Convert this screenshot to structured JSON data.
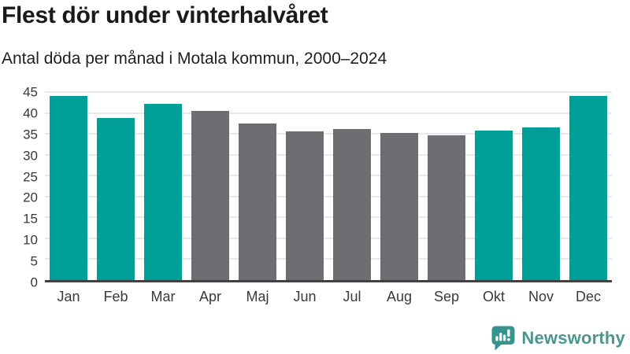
{
  "header": {
    "title": "Flest dör under vinterhalvåret",
    "subtitle": "Antal döda per månad i Motala kommun, 2000–2024"
  },
  "chart_data": {
    "type": "bar",
    "title": "Flest dör under vinterhalvåret",
    "subtitle": "Antal döda per månad i Motala kommun, 2000–2024",
    "categories": [
      "Jan",
      "Feb",
      "Mar",
      "Apr",
      "Maj",
      "Jun",
      "Jul",
      "Aug",
      "Sep",
      "Okt",
      "Nov",
      "Dec"
    ],
    "values": [
      44.0,
      38.8,
      42.1,
      40.4,
      37.4,
      35.5,
      36.2,
      35.3,
      34.6,
      35.7,
      36.5,
      44.0
    ],
    "highlighted": [
      true,
      true,
      true,
      false,
      false,
      false,
      false,
      false,
      false,
      true,
      true,
      true
    ],
    "xlabel": "",
    "ylabel": "",
    "ylim": [
      0,
      45
    ],
    "yticks": [
      0,
      5,
      10,
      15,
      20,
      25,
      30,
      35,
      40,
      45
    ],
    "grid": "horizontal",
    "legend": "none",
    "colors": {
      "highlight": "#00a099",
      "base": "#6d6d72",
      "gridline": "#e8e8e8",
      "axis_line": "#414141",
      "tick_text": "#39393b"
    }
  },
  "footer": {
    "brand_label": "Newsworthy",
    "brand_color": "#4b968f",
    "brand_icon": "newsworthy-speech-bubble-bar-chart-icon",
    "brand_icon_color": "#35948e"
  }
}
